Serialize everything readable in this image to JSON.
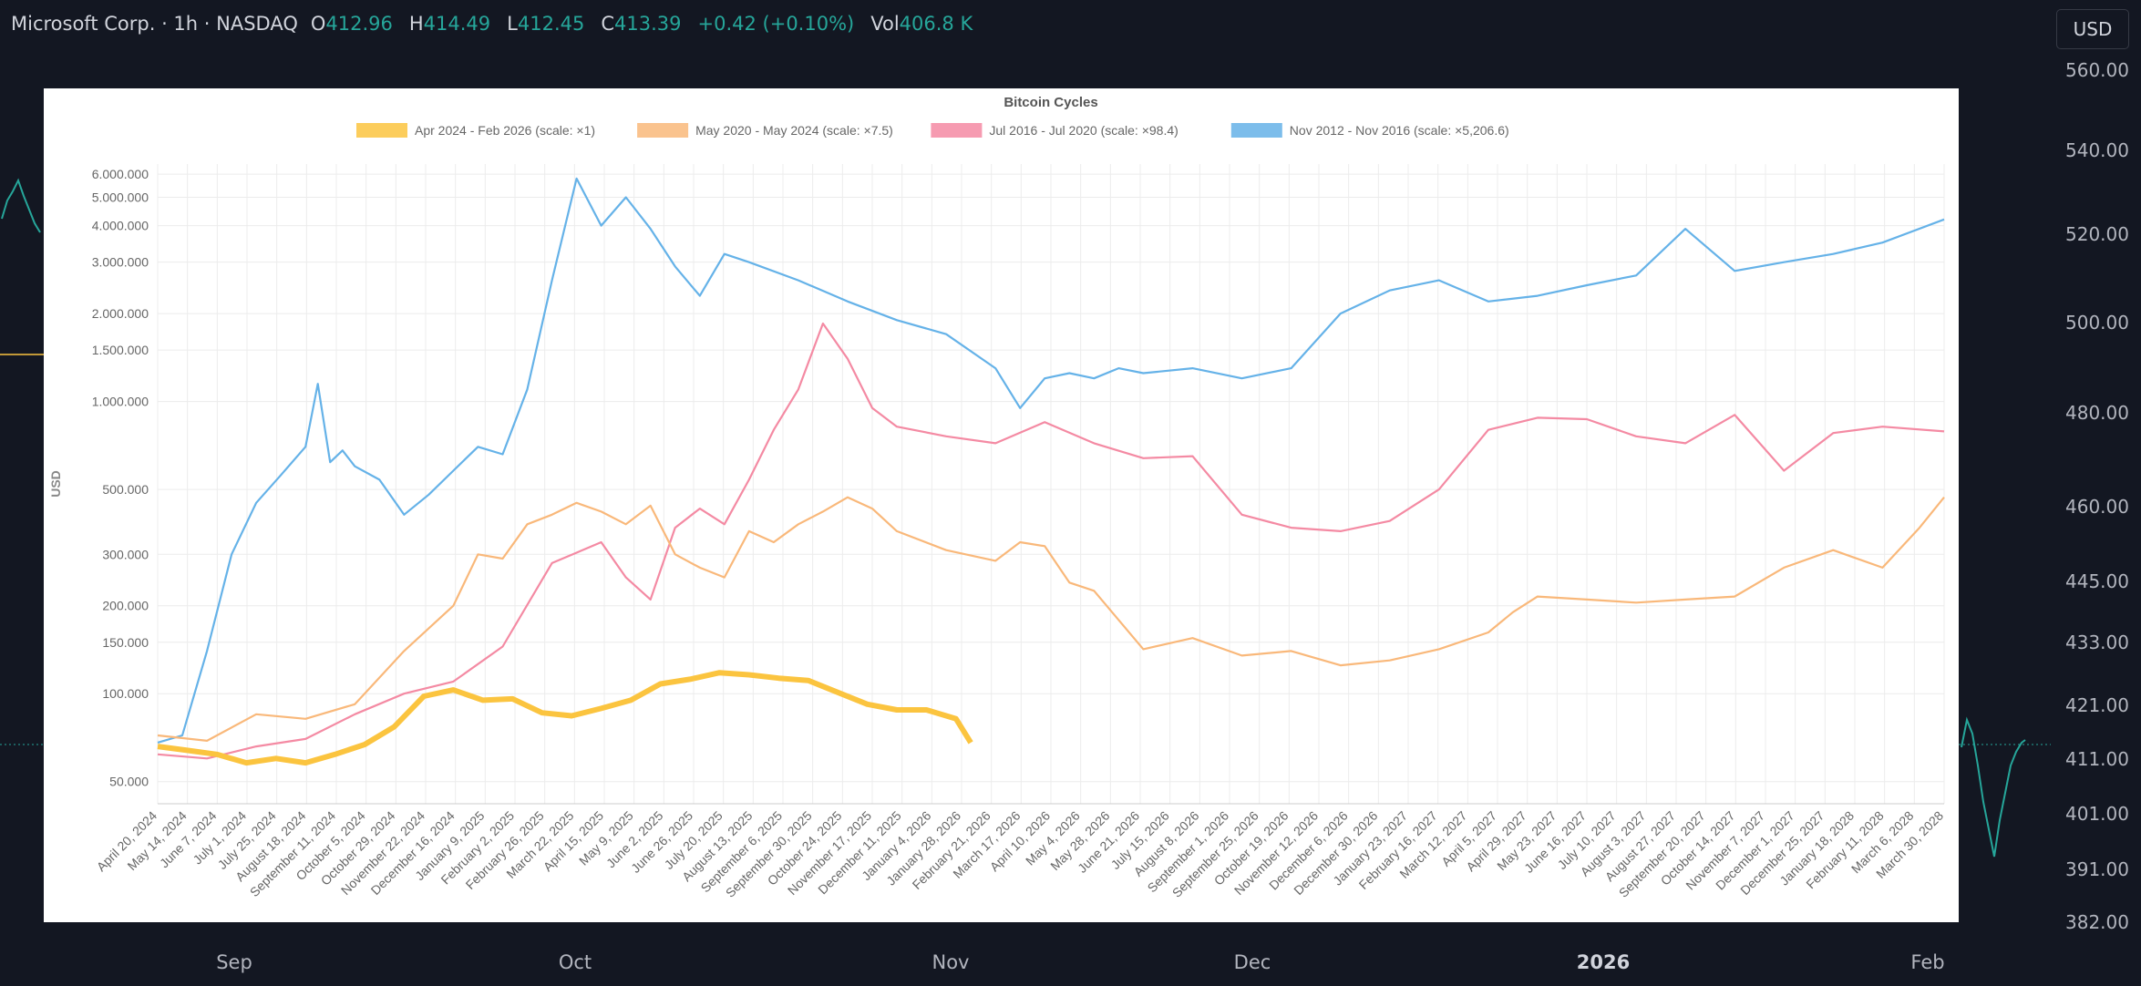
{
  "header": {
    "symbol": "Microsoft Corp. · 1h · NASDAQ",
    "open_label": "O",
    "open": "412.96",
    "high_label": "H",
    "high": "414.49",
    "low_label": "L",
    "low": "412.45",
    "close_label": "C",
    "close": "413.39",
    "change": "+0.42 (+0.10%)",
    "vol_label": "Vol",
    "vol": "406.8 K"
  },
  "currency_button": "USD",
  "price_axis": [
    "560.00",
    "540.00",
    "520.00",
    "500.00",
    "480.00",
    "460.00",
    "445.00",
    "433.00",
    "421.00",
    "411.00",
    "401.00",
    "391.00",
    "382.00"
  ],
  "time_axis": [
    {
      "label": "Sep",
      "bold": false
    },
    {
      "label": "Oct",
      "bold": false
    },
    {
      "label": "Nov",
      "bold": false
    },
    {
      "label": "Dec",
      "bold": false
    },
    {
      "label": "2026",
      "bold": true
    },
    {
      "label": "Feb",
      "bold": false
    }
  ],
  "colors": {
    "up": "#26a69a",
    "background": "#131722",
    "series_2024": "#fbc43f",
    "series_2020": "#f9b87a",
    "series_2016": "#f48aa3",
    "series_2012": "#65b2e8"
  },
  "chart_data": {
    "type": "line",
    "title": "Bitcoin Cycles",
    "ylabel": "USD",
    "xlabel": "",
    "y_scale": "log",
    "ylim": [
      42000,
      6500000
    ],
    "grid": true,
    "legend_position": "top",
    "y_ticks": [
      "6.000.000",
      "5.000.000",
      "4.000.000",
      "3.000.000",
      "2.000.000",
      "1.500.000",
      "1.000.000",
      "500.000",
      "300.000",
      "200.000",
      "150.000",
      "100.000",
      "50.000"
    ],
    "x_ticks": [
      "April 20, 2024",
      "May 14, 2024",
      "June 7, 2024",
      "July 1, 2024",
      "July 25, 2024",
      "August 18, 2024",
      "September 11, 2024",
      "October 5, 2024",
      "October 29, 2024",
      "November 22, 2024",
      "December 16, 2024",
      "January 9, 2025",
      "February 2, 2025",
      "February 26, 2025",
      "March 22, 2025",
      "April 15, 2025",
      "May 9, 2025",
      "June 2, 2025",
      "June 26, 2025",
      "July 20, 2025",
      "August 13, 2025",
      "September 6, 2025",
      "September 30, 2025",
      "October 24, 2025",
      "November 17, 2025",
      "December 11, 2025",
      "January 4, 2026",
      "January 28, 2026",
      "February 21, 2026",
      "March 17, 2026",
      "April 10, 2026",
      "May 4, 2026",
      "May 28, 2026",
      "June 21, 2026",
      "July 15, 2026",
      "August 8, 2026",
      "September 1, 2026",
      "September 25, 2026",
      "October 19, 2026",
      "November 12, 2026",
      "December 6, 2026",
      "December 30, 2026",
      "January 23, 2027",
      "February 16, 2027",
      "March 12, 2027",
      "April 5, 2027",
      "April 29, 2027",
      "May 23, 2027",
      "June 16, 2027",
      "July 10, 2027",
      "August 3, 2027",
      "August 27, 2027",
      "September 20, 2027",
      "October 14, 2027",
      "November 7, 2027",
      "December 1, 2027",
      "December 25, 2027",
      "January 18, 2028",
      "February 11, 2028",
      "March 6, 2028",
      "March 30, 2028"
    ],
    "x_domain_days": [
      0,
      1450
    ],
    "series": [
      {
        "name": "Apr 2024 - Feb 2026 (scale: ×1)",
        "color": "#fbc43f",
        "x": [
          0,
          24,
          48,
          72,
          96,
          120,
          144,
          168,
          192,
          216,
          240,
          264,
          288,
          312,
          336,
          360,
          384,
          408,
          432,
          456,
          480,
          504,
          528,
          552,
          576,
          600,
          624,
          648,
          660
        ],
        "y": [
          66000,
          64000,
          62000,
          58000,
          60000,
          58000,
          62000,
          67000,
          77000,
          98000,
          103000,
          95000,
          96000,
          86000,
          84000,
          89000,
          95000,
          108000,
          112000,
          118000,
          116000,
          113000,
          111000,
          101000,
          92000,
          88000,
          88000,
          82000,
          68000
        ]
      },
      {
        "name": "May 2020 - May 2024 (scale: ×7.5)",
        "color": "#f9b87a",
        "x": [
          0,
          40,
          80,
          120,
          160,
          200,
          240,
          260,
          280,
          300,
          320,
          340,
          360,
          380,
          400,
          420,
          440,
          460,
          480,
          500,
          520,
          540,
          560,
          580,
          600,
          640,
          680,
          700,
          720,
          740,
          760,
          800,
          840,
          880,
          920,
          960,
          1000,
          1040,
          1080,
          1100,
          1120,
          1160,
          1200,
          1240,
          1280,
          1320,
          1360,
          1400,
          1430,
          1450
        ],
        "y": [
          72000,
          69000,
          85000,
          82000,
          92000,
          140000,
          200000,
          300000,
          290000,
          380000,
          410000,
          450000,
          420000,
          380000,
          440000,
          300000,
          270000,
          250000,
          360000,
          330000,
          380000,
          420000,
          470000,
          430000,
          360000,
          310000,
          285000,
          330000,
          320000,
          240000,
          225000,
          142000,
          155000,
          135000,
          140000,
          125000,
          130000,
          142000,
          162000,
          190000,
          215000,
          210000,
          205000,
          210000,
          215000,
          270000,
          310000,
          270000,
          370000,
          470000
        ]
      },
      {
        "name": "Jul 2016 - Jul 2020 (scale: ×98.4)",
        "color": "#f48aa3",
        "x": [
          0,
          40,
          80,
          120,
          160,
          200,
          240,
          280,
          320,
          360,
          380,
          400,
          420,
          440,
          460,
          480,
          500,
          520,
          540,
          560,
          580,
          600,
          640,
          680,
          720,
          760,
          800,
          840,
          880,
          920,
          960,
          1000,
          1040,
          1080,
          1120,
          1160,
          1200,
          1240,
          1280,
          1320,
          1360,
          1400,
          1450
        ],
        "y": [
          62000,
          60000,
          66000,
          70000,
          85000,
          100000,
          110000,
          145000,
          280000,
          330000,
          250000,
          210000,
          370000,
          430000,
          380000,
          540000,
          800000,
          1100000,
          1850000,
          1400000,
          950000,
          820000,
          760000,
          720000,
          850000,
          720000,
          640000,
          650000,
          410000,
          370000,
          360000,
          390000,
          500000,
          800000,
          880000,
          870000,
          760000,
          720000,
          900000,
          580000,
          780000,
          820000,
          790000
        ]
      },
      {
        "name": "Nov 2012 - Nov 2016 (scale: ×5,206.6)",
        "color": "#65b2e8",
        "x": [
          0,
          20,
          40,
          60,
          80,
          100,
          120,
          130,
          140,
          150,
          160,
          180,
          200,
          220,
          240,
          260,
          280,
          300,
          320,
          340,
          360,
          380,
          400,
          420,
          440,
          460,
          480,
          520,
          560,
          600,
          640,
          680,
          700,
          720,
          740,
          760,
          780,
          800,
          840,
          880,
          920,
          960,
          1000,
          1040,
          1080,
          1120,
          1160,
          1200,
          1240,
          1280,
          1320,
          1360,
          1400,
          1450
        ],
        "y": [
          68000,
          72000,
          140000,
          300000,
          450000,
          560000,
          700000,
          1150000,
          620000,
          680000,
          600000,
          540000,
          410000,
          480000,
          580000,
          700000,
          660000,
          1100000,
          2600000,
          5800000,
          4000000,
          5000000,
          3900000,
          2900000,
          2300000,
          3200000,
          3000000,
          2600000,
          2200000,
          1900000,
          1700000,
          1300000,
          950000,
          1200000,
          1250000,
          1200000,
          1300000,
          1250000,
          1300000,
          1200000,
          1300000,
          2000000,
          2400000,
          2600000,
          2200000,
          2300000,
          2500000,
          2700000,
          3900000,
          2800000,
          3000000,
          3200000,
          3500000,
          4200000
        ]
      }
    ]
  }
}
